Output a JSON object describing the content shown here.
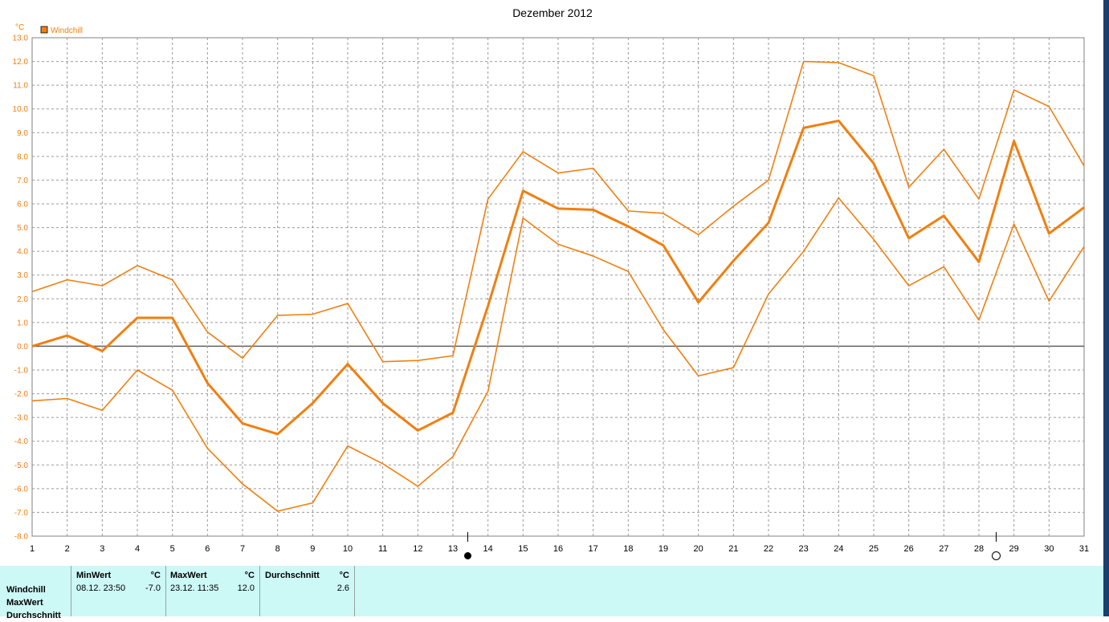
{
  "chart_data": {
    "type": "line",
    "title": "Dezember 2012",
    "unit_label": "°C",
    "legend": [
      {
        "name": "Windchill",
        "color": "#f07f10"
      }
    ],
    "legend_placement": "top-left",
    "grid": true,
    "ylim": [
      -8,
      13
    ],
    "xlim": [
      1,
      31
    ],
    "x": [
      1,
      2,
      3,
      4,
      5,
      6,
      7,
      8,
      9,
      10,
      11,
      12,
      13,
      14,
      15,
      16,
      17,
      18,
      19,
      20,
      21,
      22,
      23,
      24,
      25,
      26,
      27,
      28,
      29,
      30,
      31
    ],
    "yticks": [
      "-8.0",
      "-7.0",
      "-6.0",
      "-5.0",
      "-4.0",
      "-3.0",
      "-2.0",
      "-1.0",
      "0.0",
      "1.0",
      "2.0",
      "3.0",
      "4.0",
      "5.0",
      "6.0",
      "7.0",
      "8.0",
      "9.0",
      "10.0",
      "11.0",
      "12.0",
      "13.0"
    ],
    "series": [
      {
        "role": "max",
        "values": [
          2.3,
          2.8,
          2.55,
          3.4,
          2.8,
          0.6,
          -0.5,
          1.3,
          1.35,
          1.8,
          -0.65,
          -0.6,
          -0.4,
          6.2,
          8.2,
          7.3,
          7.5,
          5.7,
          5.6,
          4.7,
          5.9,
          7.0,
          12.0,
          11.95,
          11.4,
          6.7,
          8.3,
          6.2,
          10.8,
          10.1,
          7.6
        ]
      },
      {
        "role": "avg",
        "values": [
          0.0,
          0.45,
          -0.2,
          1.2,
          1.2,
          -1.55,
          -3.25,
          -3.7,
          -2.4,
          -0.75,
          -2.4,
          -3.55,
          -2.8,
          1.7,
          6.55,
          5.8,
          5.75,
          5.05,
          4.25,
          1.85,
          3.6,
          5.2,
          9.2,
          9.5,
          7.7,
          4.55,
          5.5,
          3.55,
          8.65,
          4.75,
          5.85
        ]
      },
      {
        "role": "min",
        "values": [
          -2.3,
          -2.2,
          -2.7,
          -1.0,
          -1.85,
          -4.3,
          -5.8,
          -6.95,
          -6.6,
          -4.2,
          -4.95,
          -5.9,
          -4.65,
          -1.9,
          5.4,
          4.3,
          3.8,
          3.15,
          0.7,
          -1.25,
          -0.9,
          2.2,
          4.0,
          6.25,
          4.5,
          2.55,
          3.35,
          1.1,
          5.15,
          1.9,
          4.2
        ]
      }
    ],
    "moon_phases": [
      {
        "phase": "new-moon",
        "day": 13.4
      },
      {
        "phase": "full-moon",
        "day": 28.5
      }
    ]
  },
  "stats": {
    "row_labels": [
      "Windchill",
      "MaxWert",
      "Durchschnitt"
    ],
    "columns": [
      {
        "header": "MinWert",
        "unit": "°C",
        "date": "08.12.  23:50",
        "value": "-7.0"
      },
      {
        "header": "MaxWert",
        "unit": "°C",
        "date": "23.12.  11:35",
        "value": "12.0"
      },
      {
        "header": "Durchschnitt",
        "unit": "°C",
        "date": "",
        "value": "2.6"
      }
    ]
  }
}
